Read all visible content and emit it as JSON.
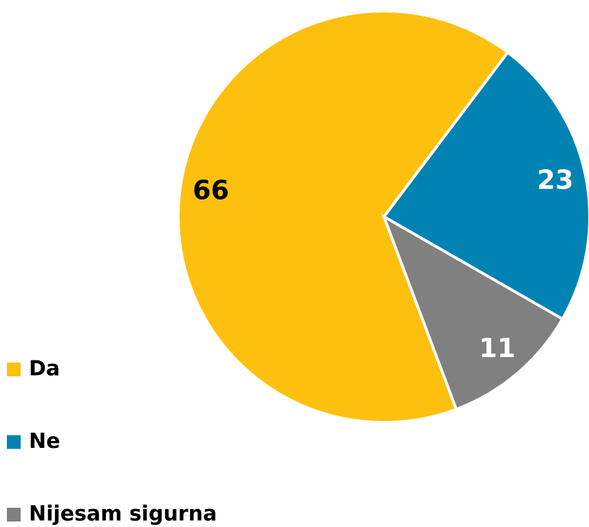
{
  "chart_data": {
    "type": "pie",
    "categories": [
      "Da",
      "Ne",
      "Nijesam sigurna"
    ],
    "values": [
      66,
      23,
      11
    ],
    "colors": [
      "#fdc00f",
      "#0083b3",
      "#808080"
    ]
  }
}
